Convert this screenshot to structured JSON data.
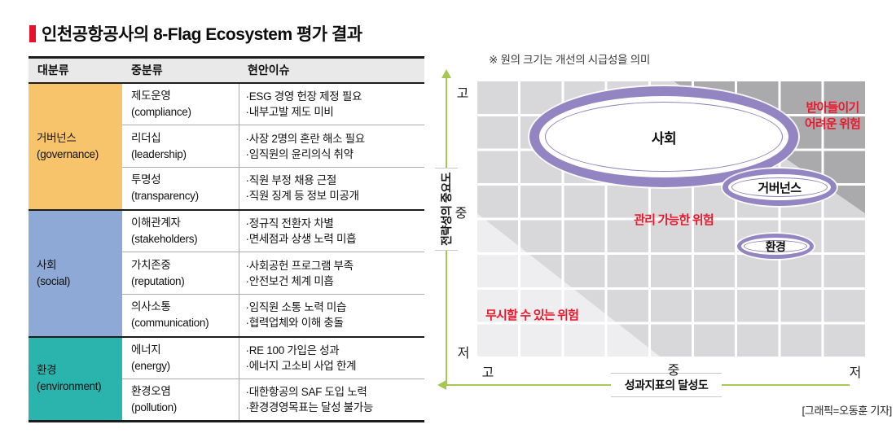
{
  "title": "인천공항공사의 8-Flag Ecosystem 평가 결과",
  "table": {
    "headers": [
      "대분류",
      "중분류",
      "현안이슈"
    ],
    "groups": [
      {
        "category": "거버넌스",
        "category_en": "(governance)",
        "color": "#f7c36b",
        "rows": [
          {
            "mid": "제도운영",
            "mid_en": "(compliance)",
            "issues": [
              "·ESG 경영 헌장 제정 필요",
              "·내부고발 제도 미비"
            ]
          },
          {
            "mid": "리더십",
            "mid_en": "(leadership)",
            "issues": [
              "·사장 2명의 혼란 해소 필요",
              "·임직원의 윤리의식 취약"
            ]
          },
          {
            "mid": "투명성",
            "mid_en": "(transparency)",
            "issues": [
              "·직원 부정 채용 근절",
              "·직원 징계 등 정보 미공개"
            ]
          }
        ]
      },
      {
        "category": "사회",
        "category_en": "(social)",
        "color": "#8fa9d6",
        "rows": [
          {
            "mid": "이해관계자",
            "mid_en": "(stakeholders)",
            "issues": [
              "·정규직 전환자 차별",
              "·면세점과 상생 노력 미흡"
            ]
          },
          {
            "mid": "가치존중",
            "mid_en": "(reputation)",
            "issues": [
              "·사회공헌 프로그램 부족",
              "·안전보건 체계 미흡"
            ]
          },
          {
            "mid": "의사소통",
            "mid_en": "(communication)",
            "issues": [
              "·임직원 소통 노력 미습",
              "·협력업체와 이해 충돌"
            ]
          }
        ]
      },
      {
        "category": "환경",
        "category_en": "(environment)",
        "color": "#2ab4ad",
        "rows": [
          {
            "mid": "에너지",
            "mid_en": "(energy)",
            "issues": [
              "·RE 100 가입은 성과",
              "·에너지 고소비 사업 한계"
            ]
          },
          {
            "mid": "환경오염",
            "mid_en": "(pollution)",
            "issues": [
              "·대한항공의 SAF 도입 노력",
              "·환경경영목표는 달성 불가능"
            ]
          }
        ]
      }
    ]
  },
  "chart_data": {
    "type": "scatter",
    "note": "※ 원의 크기는 개선의 시급성을 의미",
    "x_axis": {
      "label": "성과지표의 달성도",
      "ticks": [
        "고",
        "중",
        "저"
      ],
      "arrow_direction": "left",
      "order": "고(좌) → 저(우)"
    },
    "y_axis": {
      "label": "전략성의 중요도",
      "ticks": [
        "고",
        "중",
        "저"
      ],
      "arrow_direction": "up",
      "order": "고(상) → 저(하)"
    },
    "zones": [
      {
        "name": "받아들이기 어려운 위험",
        "lines": [
          "받아들이기",
          "어려운 위험"
        ],
        "position": "top-right",
        "tile_color": "#aaaaac"
      },
      {
        "name": "관리 가능한 위험",
        "lines": [
          "관리 가능한 위험"
        ],
        "position": "middle-diagonal",
        "tile_color": "#d8d8da"
      },
      {
        "name": "무시할 수 있는 위험",
        "lines": [
          "무시할 수 있는 위험"
        ],
        "position": "bottom-left",
        "tile_color": "#eeeef0"
      }
    ],
    "bubbles": [
      {
        "label": "사회",
        "performance_x": "고~중",
        "importance_y": "고",
        "improvement_urgency": "대"
      },
      {
        "label": "거버넌스",
        "performance_x": "중~저",
        "importance_y": "고~중",
        "improvement_urgency": "중"
      },
      {
        "label": "환경",
        "performance_x": "중~저",
        "importance_y": "중",
        "improvement_urgency": "소"
      }
    ],
    "legend_position": "none",
    "grid": "on",
    "credit": "[그래픽=오동훈 기자]",
    "colors": {
      "bubble_ring": "#9385c1",
      "risk_label": "#e8192c",
      "axis_green": "#a4c852"
    }
  },
  "colors": {
    "title_bullet": "#e8112d",
    "header_bg": "#e9e9e9",
    "governance": "#f7c36b",
    "social": "#8fa9d6",
    "environment": "#2ab4ad"
  }
}
